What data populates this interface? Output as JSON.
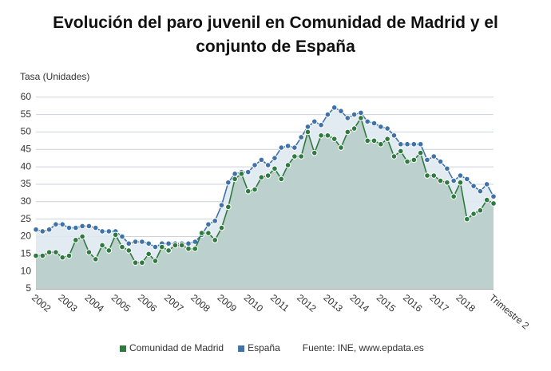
{
  "chart_data": {
    "type": "line",
    "title": "Evolución del paro juvenil en Comunidad de Madrid y el conjunto de España",
    "y_label": "Tasa (Unidades)",
    "source": "Fuente: INE, www.epdata.es",
    "categories": [
      "2002",
      null,
      null,
      null,
      "2003",
      null,
      null,
      null,
      "2004",
      null,
      null,
      null,
      "2005",
      null,
      null,
      null,
      "2006",
      null,
      null,
      null,
      "2007",
      null,
      null,
      null,
      "2008",
      null,
      null,
      null,
      "2009",
      null,
      null,
      null,
      "2010",
      null,
      null,
      null,
      "2011",
      null,
      null,
      null,
      "2012",
      null,
      null,
      null,
      "2013",
      null,
      null,
      null,
      "2014",
      null,
      null,
      null,
      "2015",
      null,
      null,
      null,
      "2016",
      null,
      null,
      null,
      "2017",
      null,
      null,
      null,
      "2018",
      null,
      null,
      null,
      null,
      "Trimestre 2"
    ],
    "series": [
      {
        "name": "España",
        "color": "#3f72a8",
        "fill": "#dfe9f1",
        "values": [
          22,
          21.5,
          22,
          23.5,
          23.5,
          22.5,
          22.5,
          23,
          23,
          22.5,
          21.5,
          21.5,
          21.5,
          20,
          18,
          18.5,
          18.5,
          18,
          17,
          18,
          18,
          18,
          18,
          18,
          18.5,
          20.5,
          23.5,
          24.5,
          29,
          35.5,
          38,
          38.5,
          38.5,
          40.5,
          42,
          40.5,
          42.5,
          45.5,
          46,
          45.5,
          48.5,
          51.5,
          53,
          52,
          55,
          57,
          56,
          54,
          55,
          55.5,
          53,
          52.5,
          51.5,
          51,
          49,
          46.5,
          46.5,
          46.5,
          46.5,
          42,
          43,
          41.5,
          39.5,
          36,
          37.5,
          36.5,
          34.5,
          33,
          35,
          31.5
        ]
      },
      {
        "name": "Comunidad de Madrid",
        "color": "#2f7a3e",
        "fill": "#b5cdc8",
        "values": [
          14.5,
          14.5,
          15.5,
          15.5,
          14,
          14.5,
          19,
          20,
          15.5,
          13.5,
          17.5,
          16,
          20.5,
          17,
          16,
          12.5,
          12.5,
          15,
          13,
          17,
          16,
          17.5,
          17.5,
          16.5,
          16.5,
          21,
          21,
          19,
          22.5,
          28.5,
          36.5,
          38,
          33,
          33.5,
          37,
          37.5,
          39.5,
          36.5,
          40.5,
          43,
          43,
          50,
          44,
          49,
          49,
          48,
          45.5,
          50,
          51,
          54,
          47.5,
          47.5,
          46.5,
          48,
          43,
          44.5,
          41.5,
          42,
          44,
          37.5,
          37.5,
          36,
          35.5,
          31.5,
          35.5,
          25,
          26.5,
          27.5,
          30.5,
          29.5
        ]
      }
    ],
    "legend_order": [
      1,
      0
    ],
    "ylim": [
      5,
      62
    ],
    "yticks": [
      5,
      10,
      15,
      20,
      25,
      30,
      35,
      40,
      45,
      50,
      55,
      60
    ],
    "grid": true
  }
}
